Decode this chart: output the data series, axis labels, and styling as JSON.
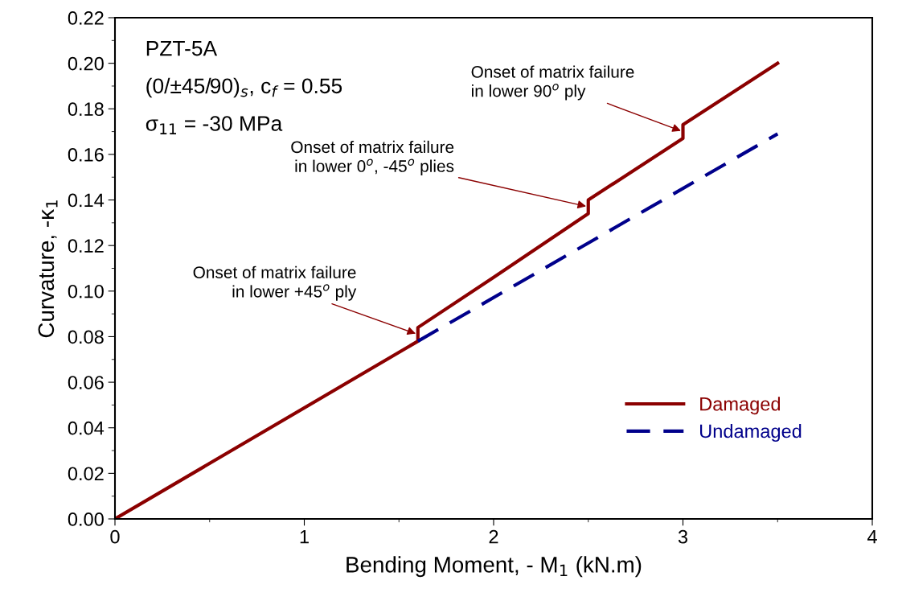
{
  "chart_data": {
    "type": "line",
    "xlabel": "Bending Moment, - M$_{1}$ (kN.m)",
    "ylabel": "Curvature, -κ$_{1}$",
    "series": [
      {
        "name": "Damaged",
        "color": "#8b0000",
        "line_style": "solid",
        "x": [
          0,
          1.6,
          1.6,
          2.0,
          2.5,
          2.5,
          3.0,
          3.0,
          3.5
        ],
        "values": [
          0,
          0.078,
          0.084,
          0.106,
          0.134,
          0.14,
          0.167,
          0.173,
          0.2
        ]
      },
      {
        "name": "Undamaged",
        "color": "#00008b",
        "line_style": "dashed",
        "x": [
          1.6,
          3.5
        ],
        "values": [
          0.078,
          0.169
        ]
      }
    ],
    "annotations": [
      "PZT-5A",
      "(0/±45/90)$_{s}$, c$_{f}$ = 0.55",
      "σ$_{11}$ = -30 MPa",
      {
        "text": "Onset of matrix failure\nin lower +45$^{o}$ ply",
        "x": 1.6,
        "y": 0.081
      },
      {
        "text": "Onset of matrix failure\nin lower 0$^{o}$, -45$^{o}$ plies",
        "x": 2.5,
        "y": 0.137
      },
      {
        "text": "Onset of matrix failure\nin lower 90$^{o}$ ply",
        "x": 3.0,
        "y": 0.17
      }
    ],
    "xlim": [
      0,
      4
    ],
    "xticks": [
      0,
      1,
      2,
      3,
      4
    ],
    "ylim": [
      0,
      0.22
    ],
    "yticks": [
      {
        "value": 0,
        "label": "0.00"
      },
      {
        "value": 0.02,
        "label": "0.02"
      },
      {
        "value": 0.04,
        "label": "0.04"
      },
      {
        "value": 0.06,
        "label": "0.06"
      },
      {
        "value": 0.08,
        "label": "0.08"
      },
      {
        "value": 0.1,
        "label": "0.10"
      },
      {
        "value": 0.12,
        "label": "0.12"
      },
      {
        "value": 0.14,
        "label": "0.14"
      },
      {
        "value": 0.16,
        "label": "0.16"
      },
      {
        "value": 0.18,
        "label": "0.18"
      },
      {
        "value": 0.2,
        "label": "0.20"
      },
      {
        "value": 0.22,
        "label": "0.22"
      }
    ],
    "grid": false,
    "legend": "bottom right"
  }
}
